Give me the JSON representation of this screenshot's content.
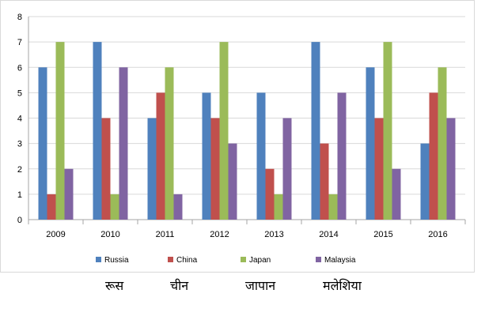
{
  "chart_data": {
    "type": "bar",
    "categories": [
      "2009",
      "2010",
      "2011",
      "2012",
      "2013",
      "2014",
      "2015",
      "2016"
    ],
    "series": [
      {
        "name": "Russia",
        "color": "#4f81bd",
        "values": [
          6,
          7,
          4,
          5,
          5,
          7,
          6,
          3
        ]
      },
      {
        "name": "China",
        "color": "#c0504d",
        "values": [
          1,
          4,
          5,
          4,
          2,
          3,
          4,
          5
        ]
      },
      {
        "name": "Japan",
        "color": "#9bbb59",
        "values": [
          7,
          1,
          6,
          7,
          1,
          1,
          7,
          6
        ]
      },
      {
        "name": "Malaysia",
        "color": "#8064a2",
        "values": [
          2,
          6,
          1,
          3,
          4,
          5,
          2,
          4
        ]
      }
    ],
    "ylim": [
      0,
      8
    ],
    "yticks": [
      "0",
      "1",
      "2",
      "3",
      "4",
      "5",
      "6",
      "7",
      "8"
    ],
    "grid": true,
    "legend_position": "bottom"
  },
  "hindi_labels": [
    "रूस",
    "चीन",
    "जापान",
    "मलेशिया"
  ]
}
